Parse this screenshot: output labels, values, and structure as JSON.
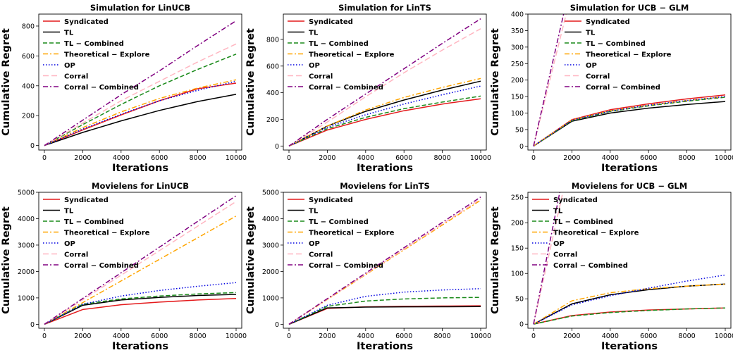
{
  "chart_data": [
    {
      "type": "line",
      "title": "Simulation for LinUCB",
      "xlabel": "Iterations",
      "ylabel": "Cumulative Regret",
      "xlim": [
        0,
        10000
      ],
      "ylim": [
        -30,
        880
      ],
      "xticks": [
        0,
        2000,
        4000,
        6000,
        8000,
        10000
      ],
      "yticks": [
        0,
        200,
        400,
        600,
        800
      ],
      "legend": "upper-left",
      "series": [
        {
          "name": "Syndicated",
          "values": [
            0,
            105,
            205,
            300,
            380,
            418
          ]
        },
        {
          "name": "TL",
          "values": [
            0,
            88,
            165,
            235,
            295,
            343
          ]
        },
        {
          "name": "TL − Combined",
          "values": [
            0,
            140,
            275,
            400,
            510,
            612
          ]
        },
        {
          "name": "Theoretical − Explore",
          "values": [
            0,
            120,
            225,
            315,
            385,
            440
          ]
        },
        {
          "name": "OP",
          "values": [
            0,
            110,
            210,
            300,
            370,
            430
          ]
        },
        {
          "name": "Corral",
          "values": [
            0,
            150,
            300,
            430,
            560,
            680
          ]
        },
        {
          "name": "Corral − Combined",
          "values": [
            0,
            170,
            340,
            500,
            670,
            835
          ]
        }
      ]
    },
    {
      "type": "line",
      "title": "Simulation for LinTS",
      "xlabel": "Iterations",
      "ylabel": "Cumulative Regret",
      "xlim": [
        0,
        10000
      ],
      "ylim": [
        -30,
        990
      ],
      "xticks": [
        0,
        2000,
        4000,
        6000,
        8000,
        10000
      ],
      "yticks": [
        0,
        200,
        400,
        600,
        800
      ],
      "legend": "upper-left",
      "series": [
        {
          "name": "Syndicated",
          "values": [
            0,
            120,
            200,
            265,
            315,
            355
          ]
        },
        {
          "name": "TL",
          "values": [
            0,
            150,
            260,
            345,
            420,
            487
          ]
        },
        {
          "name": "TL − Combined",
          "values": [
            0,
            130,
            215,
            280,
            330,
            375
          ]
        },
        {
          "name": "Theoretical − Explore",
          "values": [
            0,
            150,
            270,
            365,
            440,
            507
          ]
        },
        {
          "name": "OP",
          "values": [
            0,
            140,
            235,
            315,
            385,
            450
          ]
        },
        {
          "name": "Corral",
          "values": [
            0,
            180,
            370,
            550,
            720,
            880
          ]
        },
        {
          "name": "Corral − Combined",
          "values": [
            0,
            200,
            390,
            580,
            770,
            955
          ]
        }
      ]
    },
    {
      "type": "line",
      "title": "Simulation for UCB − GLM",
      "xlabel": "Iterations",
      "ylabel": "Cumulative Regret",
      "xlim": [
        0,
        10000
      ],
      "ylim": [
        -12,
        400
      ],
      "xticks": [
        0,
        2000,
        4000,
        6000,
        8000,
        10000
      ],
      "yticks": [
        0,
        50,
        100,
        150,
        200,
        250,
        300,
        350,
        400
      ],
      "legend": "upper-right",
      "series": [
        {
          "name": "Syndicated",
          "values": [
            0,
            80,
            110,
            128,
            143,
            155
          ]
        },
        {
          "name": "TL",
          "values": [
            0,
            75,
            100,
            115,
            126,
            135
          ]
        },
        {
          "name": "TL − Combined",
          "values": [
            0,
            77,
            105,
            122,
            136,
            148
          ]
        },
        {
          "name": "Theoretical − Explore",
          "values": [
            0,
            79,
            107,
            124,
            138,
            150
          ]
        },
        {
          "name": "OP",
          "values": [
            0,
            78,
            106,
            124,
            138,
            150
          ]
        },
        {
          "name": "Corral",
          "values": [
            0,
            470
          ]
        },
        {
          "name": "Corral − Combined",
          "values": [
            0,
            510
          ]
        }
      ]
    },
    {
      "type": "line",
      "title": "Movielens for LinUCB",
      "xlabel": "Iterations",
      "ylabel": "Cumulative Regret",
      "xlim": [
        0,
        10000
      ],
      "ylim": [
        -150,
        5000
      ],
      "xticks": [
        0,
        2000,
        4000,
        6000,
        8000,
        10000
      ],
      "yticks": [
        0,
        1000,
        2000,
        3000,
        4000,
        5000
      ],
      "legend": "upper-left",
      "series": [
        {
          "name": "Syndicated",
          "values": [
            0,
            560,
            740,
            840,
            920,
            980
          ]
        },
        {
          "name": "TL",
          "values": [
            0,
            720,
            920,
            1020,
            1090,
            1130
          ]
        },
        {
          "name": "TL − Combined",
          "values": [
            0,
            760,
            960,
            1070,
            1150,
            1200
          ]
        },
        {
          "name": "Theoretical − Explore",
          "values": [
            0,
            820,
            1640,
            2460,
            3280,
            4100
          ]
        },
        {
          "name": "OP",
          "values": [
            0,
            760,
            1070,
            1280,
            1440,
            1580
          ]
        },
        {
          "name": "Corral",
          "values": [
            0,
            930,
            1860,
            2790,
            3720,
            4650
          ]
        },
        {
          "name": "Corral − Combined",
          "values": [
            0,
            980,
            1950,
            2920,
            3900,
            4870
          ]
        }
      ]
    },
    {
      "type": "line",
      "title": "Movielens for LinTS",
      "xlabel": "Iterations",
      "ylabel": "Cumulative Regret",
      "xlim": [
        0,
        10000
      ],
      "ylim": [
        -150,
        5000
      ],
      "xticks": [
        0,
        2000,
        4000,
        6000,
        8000,
        10000
      ],
      "yticks": [
        0,
        1000,
        2000,
        3000,
        4000,
        5000
      ],
      "legend": "upper-left",
      "series": [
        {
          "name": "Syndicated",
          "values": [
            0,
            600,
            660,
            680,
            690,
            700
          ]
        },
        {
          "name": "TL",
          "values": [
            0,
            620,
            650,
            660,
            665,
            670
          ]
        },
        {
          "name": "TL − Combined",
          "values": [
            0,
            680,
            880,
            960,
            1000,
            1020
          ]
        },
        {
          "name": "Theoretical − Explore",
          "values": [
            0,
            940,
            1880,
            2820,
            3760,
            4700
          ]
        },
        {
          "name": "OP",
          "values": [
            0,
            720,
            1060,
            1220,
            1300,
            1350
          ]
        },
        {
          "name": "Corral",
          "values": [
            0,
            950,
            1900,
            2850,
            3800,
            4750
          ]
        },
        {
          "name": "Corral − Combined",
          "values": [
            0,
            970,
            1940,
            2900,
            3860,
            4820
          ]
        }
      ]
    },
    {
      "type": "line",
      "title": "Movielens for UCB − GLM",
      "xlabel": "Iterations",
      "ylabel": "Cumulative Regret",
      "xlim": [
        0,
        10000
      ],
      "ylim": [
        -8,
        260
      ],
      "xticks": [
        0,
        2000,
        4000,
        6000,
        8000,
        10000
      ],
      "yticks": [
        0,
        50,
        100,
        150,
        200,
        250
      ],
      "legend": "upper-left",
      "series": [
        {
          "name": "Syndicated",
          "values": [
            0,
            17,
            24,
            28,
            30,
            32
          ]
        },
        {
          "name": "TL",
          "values": [
            0,
            40,
            58,
            68,
            75,
            79
          ]
        },
        {
          "name": "TL − Combined",
          "values": [
            0,
            16,
            23,
            27,
            30,
            32
          ]
        },
        {
          "name": "Theoretical − Explore",
          "values": [
            0,
            46,
            62,
            70,
            75,
            79
          ]
        },
        {
          "name": "OP",
          "values": [
            0,
            38,
            56,
            71,
            85,
            97
          ]
        },
        {
          "name": "Corral",
          "values": [
            0,
            340
          ]
        },
        {
          "name": "Corral − Combined",
          "values": [
            0,
            380
          ]
        }
      ]
    }
  ],
  "colors": {
    "Syndicated": "#e41a1c",
    "TL": "#000000",
    "TL − Combined": "#1a8a1a",
    "Theoretical − Explore": "#ffa500",
    "OP": "#0000e0",
    "Corral": "#ffb6c1",
    "Corral − Combined": "#800080"
  }
}
